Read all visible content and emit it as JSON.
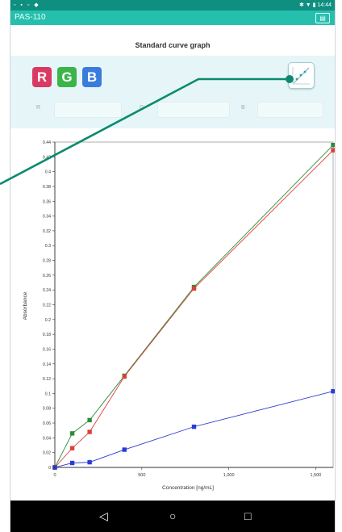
{
  "status_bar": {
    "time": "14:44",
    "left_icons": "▫ ▪ ▫ ◆",
    "right_icons": "✱ ▼ ▮"
  },
  "app_bar": {
    "title": "PAS-110",
    "menu_glyph": "▤"
  },
  "header": {
    "title": "Standard curve graph"
  },
  "channels": {
    "r_label": "R",
    "g_label": "G",
    "b_label": "B"
  },
  "fields": {
    "r_label": "R",
    "g_label": "G",
    "b_label": "B"
  },
  "chart_data": {
    "type": "line",
    "xlabel": "Concentration [ng/mL]",
    "ylabel": "Absorbance",
    "xlim": [
      0,
      1600
    ],
    "ylim": [
      0,
      0.44
    ],
    "x_ticks": [
      0,
      500,
      1000,
      1500
    ],
    "x_tick_labels": [
      "0",
      "500",
      "1,000",
      "1,500"
    ],
    "y_ticks": [
      0,
      0.02,
      0.04,
      0.06,
      0.08,
      0.1,
      0.12,
      0.14,
      0.16,
      0.18,
      0.2,
      0.22,
      0.24,
      0.26,
      0.28,
      0.3,
      0.32,
      0.34,
      0.36,
      0.38,
      0.4,
      0.42,
      0.44
    ],
    "y_tick_labels": [
      "0",
      "0.02",
      "0.04",
      "0.06",
      "0.08",
      "0.1",
      "0.12",
      "0.14",
      "0.16",
      "0.18",
      "0.2",
      "0.22",
      "0.24",
      "0.26",
      "0.28",
      "0.3",
      "0.32",
      "0.34",
      "0.36",
      "0.38",
      "0.4",
      "0.42",
      "0.44"
    ],
    "grid": true,
    "series": [
      {
        "color": "#2e8b3a",
        "x": [
          0,
          100,
          200,
          400,
          800,
          1600
        ],
        "y": [
          0,
          0.046,
          0.064,
          0.124,
          0.244,
          0.436
        ]
      },
      {
        "color": "#d9423a",
        "x": [
          0,
          100,
          200,
          400,
          800,
          1600
        ],
        "y": [
          0,
          0.026,
          0.048,
          0.123,
          0.242,
          0.429
        ]
      },
      {
        "color": "#2a3bd6",
        "x": [
          0,
          100,
          200,
          400,
          800,
          1600
        ],
        "y": [
          0,
          0.006,
          0.007,
          0.024,
          0.055,
          0.103
        ]
      }
    ]
  },
  "nav": {
    "back": "◁",
    "home": "○",
    "recents": "□"
  },
  "colors": {
    "accent": "#26bfae",
    "callout": "#0b8a6f"
  }
}
